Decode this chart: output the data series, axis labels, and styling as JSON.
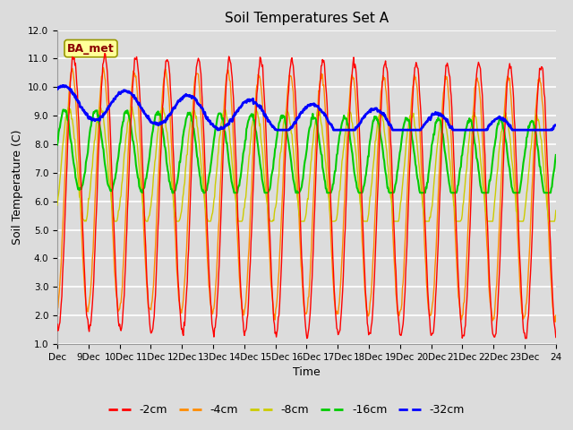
{
  "title": "Soil Temperatures Set A",
  "xlabel": "Time",
  "ylabel": "Soil Temperature (C)",
  "ylim": [
    1.0,
    12.0
  ],
  "yticks": [
    1.0,
    2.0,
    3.0,
    4.0,
    5.0,
    6.0,
    7.0,
    8.0,
    9.0,
    10.0,
    11.0,
    12.0
  ],
  "annotation_text": "BA_met",
  "annotation_color": "#8B0000",
  "annotation_bg": "#FFFF99",
  "colors": {
    "-2cm": "#FF0000",
    "-4cm": "#FF8C00",
    "-8cm": "#CCCC00",
    "-16cm": "#00CC00",
    "-32cm": "#0000FF"
  },
  "legend_labels": [
    "-2cm",
    "-4cm",
    "-8cm",
    "-16cm",
    "-32cm"
  ],
  "background_color": "#DCDCDC",
  "plot_bg": "#DCDCDC",
  "title_fontsize": 11,
  "axis_label_fontsize": 9,
  "tick_fontsize": 7.5
}
